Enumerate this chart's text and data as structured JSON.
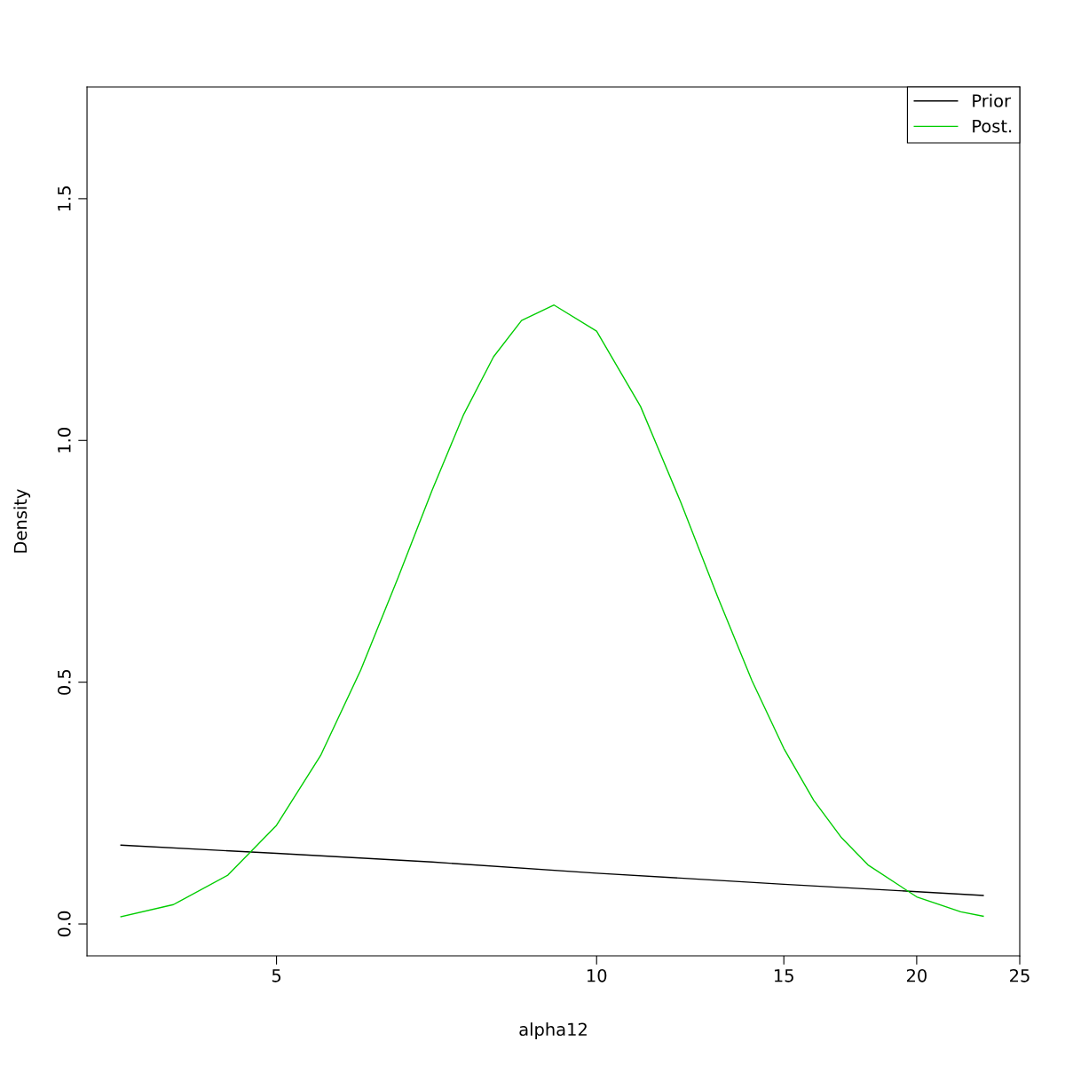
{
  "chart_data": {
    "type": "line",
    "xlabel": "alpha12",
    "ylabel": "Density",
    "log": "x",
    "xlim": [
      3.317,
      25
    ],
    "ylim": [
      -0.066,
      1.731
    ],
    "xticks": [
      5,
      10,
      15,
      20,
      25
    ],
    "yticks": [
      {
        "value": 0,
        "label": "0.0"
      },
      {
        "value": 0.5,
        "label": "0.5"
      },
      {
        "value": 1,
        "label": "1.0"
      },
      {
        "value": 1.5,
        "label": "1.5"
      }
    ],
    "grid": false,
    "legend": "top right",
    "marker": "none",
    "line_style": "solid",
    "series": [
      {
        "name": "Prior",
        "color": "#000000",
        "x": [
          3.57,
          5,
          7,
          10,
          15,
          23.1
        ],
        "values": [
          0.163,
          0.146,
          0.128,
          0.105,
          0.082,
          0.059
        ]
      },
      {
        "name": "Post.",
        "color": "#00cd00",
        "x": [
          3.57,
          4,
          4.5,
          5,
          5.5,
          6,
          6.5,
          7,
          7.5,
          8,
          8.5,
          9.12,
          10,
          11,
          12,
          13,
          14,
          15,
          16,
          17,
          18,
          20,
          22,
          23.1
        ],
        "values": [
          0.015,
          0.04,
          0.101,
          0.204,
          0.348,
          0.525,
          0.714,
          0.896,
          1.054,
          1.173,
          1.248,
          1.28,
          1.226,
          1.07,
          0.872,
          0.676,
          0.503,
          0.363,
          0.256,
          0.178,
          0.122,
          0.056,
          0.025,
          0.016
        ]
      }
    ]
  }
}
